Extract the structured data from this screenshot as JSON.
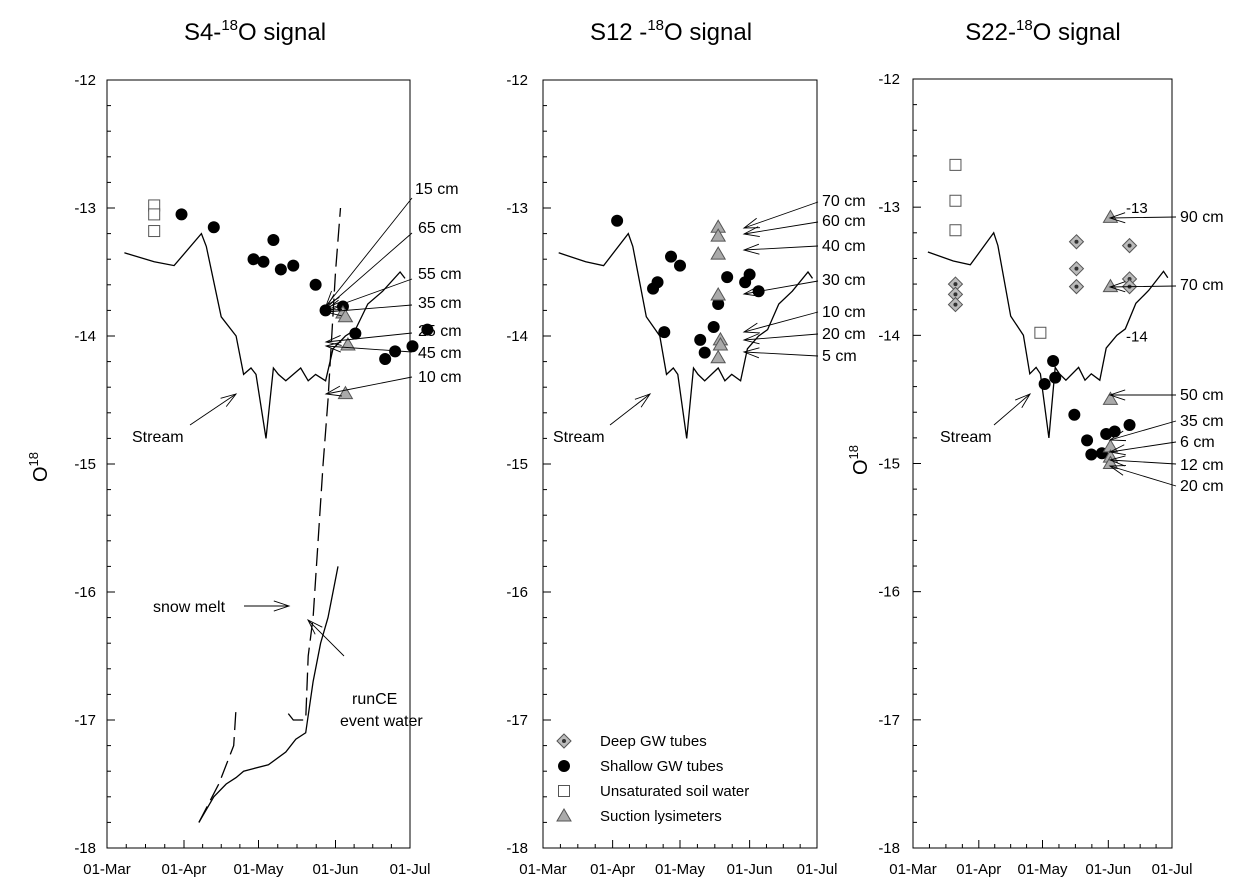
{
  "chart_data": [
    {
      "type": "scatter",
      "title": "S4-18O signal",
      "title_base": "S4-",
      "title_sup": "18",
      "title_rest": "O signal",
      "ylabel_base": "O",
      "ylabel_sup": "18",
      "ylim": [
        -18,
        -12
      ],
      "xlim": [
        "2000-03-01",
        "2000-07-01"
      ],
      "x_tick_labels": [
        "01-Mar",
        "01-Apr",
        "01-May",
        "01-Jun",
        "01-Jul"
      ],
      "x_tick_dates": [
        "2000-03-01",
        "2000-04-01",
        "2000-05-01",
        "2000-06-01",
        "2000-07-01"
      ],
      "y_ticks": [
        -12,
        -13,
        -14,
        -15,
        -16,
        -17,
        -18
      ],
      "y_tick_side": "left",
      "series": [
        {
          "name": "Stream",
          "kind": "line",
          "points": [
            [
              "2000-03-08",
              -13.35
            ],
            [
              "2000-03-20",
              -13.42
            ],
            [
              "2000-03-28",
              -13.45
            ],
            [
              "2000-04-08",
              -13.2
            ],
            [
              "2000-04-10",
              -13.3
            ],
            [
              "2000-04-16",
              -13.85
            ],
            [
              "2000-04-22",
              -14.0
            ],
            [
              "2000-04-25",
              -14.3
            ],
            [
              "2000-04-28",
              -14.25
            ],
            [
              "2000-04-30",
              -14.3
            ],
            [
              "2000-05-04",
              -14.8
            ],
            [
              "2000-05-07",
              -14.25
            ],
            [
              "2000-05-09",
              -14.3
            ],
            [
              "2000-05-12",
              -14.35
            ],
            [
              "2000-05-18",
              -14.25
            ],
            [
              "2000-05-21",
              -14.35
            ],
            [
              "2000-05-24",
              -14.3
            ],
            [
              "2000-05-28",
              -14.35
            ],
            [
              "2000-05-31",
              -14.1
            ],
            [
              "2000-06-05",
              -14.0
            ],
            [
              "2000-06-09",
              -13.95
            ],
            [
              "2000-06-14",
              -13.75
            ],
            [
              "2000-06-20",
              -13.65
            ],
            [
              "2000-06-27",
              -13.5
            ],
            [
              "2000-06-29",
              -13.55
            ]
          ]
        },
        {
          "name": "snow melt",
          "kind": "dashed",
          "points": [
            [
              "2000-04-07",
              -17.8
            ],
            [
              "2000-04-15",
              -17.5
            ],
            [
              "2000-04-21",
              -17.2
            ],
            [
              "2000-04-22",
              -16.9
            ]
          ]
        },
        {
          "name": "snow melt",
          "kind": "dashed",
          "points": [
            [
              "2000-05-13",
              -16.95
            ],
            [
              "2000-05-15",
              -17.0
            ],
            [
              "2000-05-20",
              -17.0
            ],
            [
              "2000-05-21",
              -16.5
            ],
            [
              "2000-05-23",
              -16.2
            ],
            [
              "2000-05-27",
              -15.0
            ],
            [
              "2000-05-29",
              -14.5
            ],
            [
              "2000-06-01",
              -13.5
            ],
            [
              "2000-06-03",
              -13.0
            ]
          ]
        },
        {
          "name": "runCE event water",
          "kind": "line",
          "points": [
            [
              "2000-04-07",
              -17.8
            ],
            [
              "2000-04-13",
              -17.6
            ],
            [
              "2000-04-18",
              -17.5
            ],
            [
              "2000-04-22",
              -17.45
            ],
            [
              "2000-04-25",
              -17.4
            ],
            [
              "2000-04-29",
              -17.38
            ],
            [
              "2000-05-05",
              -17.35
            ],
            [
              "2000-05-12",
              -17.25
            ],
            [
              "2000-05-16",
              -17.15
            ],
            [
              "2000-05-20",
              -17.1
            ],
            [
              "2000-05-23",
              -16.7
            ],
            [
              "2000-05-26",
              -16.4
            ],
            [
              "2000-05-29",
              -16.2
            ],
            [
              "2000-06-01",
              -15.9
            ],
            [
              "2000-06-02",
              -15.8
            ]
          ]
        },
        {
          "name": "Shallow GW tubes",
          "kind": "circle",
          "points": [
            [
              "2000-03-31",
              -13.05
            ],
            [
              "2000-04-13",
              -13.15
            ],
            [
              "2000-04-29",
              -13.4
            ],
            [
              "2000-05-03",
              -13.42
            ],
            [
              "2000-05-07",
              -13.25
            ],
            [
              "2000-05-10",
              -13.48
            ],
            [
              "2000-05-15",
              -13.45
            ],
            [
              "2000-05-24",
              -13.6
            ],
            [
              "2000-05-28",
              -13.8
            ],
            [
              "2000-06-04",
              -13.77
            ],
            [
              "2000-06-09",
              -13.98
            ],
            [
              "2000-06-21",
              -14.18
            ],
            [
              "2000-06-25",
              -14.12
            ],
            [
              "2000-07-02",
              -14.08
            ],
            [
              "2000-07-08",
              -13.95
            ]
          ]
        },
        {
          "name": "Unsaturated soil water",
          "kind": "square",
          "points": [
            [
              "2000-03-20",
              -12.98
            ],
            [
              "2000-03-20",
              -13.05
            ],
            [
              "2000-03-20",
              -13.18
            ]
          ]
        },
        {
          "name": "Suction lysimeters",
          "kind": "triangle",
          "points": [
            [
              "2000-06-04",
              -13.82
            ],
            [
              "2000-06-05",
              -13.85
            ],
            [
              "2000-06-06",
              -14.07
            ],
            [
              "2000-06-05",
              -14.45
            ]
          ]
        }
      ],
      "annotations": [
        "15 cm",
        "65 cm",
        "55 cm",
        "35 cm",
        "25 cm",
        "45 cm",
        "10 cm",
        "Stream",
        "snow melt",
        "runCE",
        "event water"
      ]
    },
    {
      "type": "scatter",
      "title": "S12 -18O signal",
      "title_base": "S12 -",
      "title_sup": "18",
      "title_rest": "O signal",
      "ylim": [
        -18,
        -12
      ],
      "xlim": [
        "2000-03-01",
        "2000-07-01"
      ],
      "x_tick_labels": [
        "01-Mar",
        "01-Apr",
        "01-May",
        "01-Jun",
        "01-Jul"
      ],
      "x_tick_dates": [
        "2000-03-01",
        "2000-04-01",
        "2000-05-01",
        "2000-06-01",
        "2000-07-01"
      ],
      "y_ticks": [
        -12,
        -13,
        -14,
        -15,
        -16,
        -17,
        -18
      ],
      "y_tick_side": "left",
      "series": [
        {
          "name": "Stream",
          "kind": "line",
          "points": [
            [
              "2000-03-08",
              -13.35
            ],
            [
              "2000-03-20",
              -13.42
            ],
            [
              "2000-03-28",
              -13.45
            ],
            [
              "2000-04-08",
              -13.2
            ],
            [
              "2000-04-10",
              -13.3
            ],
            [
              "2000-04-16",
              -13.85
            ],
            [
              "2000-04-22",
              -14.0
            ],
            [
              "2000-04-25",
              -14.3
            ],
            [
              "2000-04-28",
              -14.25
            ],
            [
              "2000-04-30",
              -14.3
            ],
            [
              "2000-05-04",
              -14.8
            ],
            [
              "2000-05-07",
              -14.25
            ],
            [
              "2000-05-09",
              -14.3
            ],
            [
              "2000-05-12",
              -14.35
            ],
            [
              "2000-05-18",
              -14.25
            ],
            [
              "2000-05-21",
              -14.35
            ],
            [
              "2000-05-24",
              -14.3
            ],
            [
              "2000-05-28",
              -14.35
            ],
            [
              "2000-05-31",
              -14.1
            ],
            [
              "2000-06-05",
              -14.0
            ],
            [
              "2000-06-09",
              -13.95
            ],
            [
              "2000-06-14",
              -13.75
            ],
            [
              "2000-06-20",
              -13.65
            ],
            [
              "2000-06-27",
              -13.5
            ],
            [
              "2000-06-29",
              -13.55
            ]
          ]
        },
        {
          "name": "Shallow GW tubes",
          "kind": "circle",
          "points": [
            [
              "2000-04-03",
              -13.1
            ],
            [
              "2000-04-19",
              -13.63
            ],
            [
              "2000-04-21",
              -13.58
            ],
            [
              "2000-04-24",
              -13.97
            ],
            [
              "2000-04-27",
              -13.38
            ],
            [
              "2000-05-01",
              -13.45
            ],
            [
              "2000-05-10",
              -14.03
            ],
            [
              "2000-05-12",
              -14.13
            ],
            [
              "2000-05-16",
              -13.93
            ],
            [
              "2000-05-18",
              -13.75
            ],
            [
              "2000-05-22",
              -13.54
            ],
            [
              "2000-05-30",
              -13.58
            ],
            [
              "2000-06-01",
              -13.52
            ],
            [
              "2000-06-05",
              -13.65
            ]
          ]
        },
        {
          "name": "Suction lysimeters",
          "kind": "triangle",
          "points": [
            [
              "2000-05-18",
              -13.15
            ],
            [
              "2000-05-18",
              -13.22
            ],
            [
              "2000-05-18",
              -13.36
            ],
            [
              "2000-05-18",
              -13.68
            ],
            [
              "2000-05-19",
              -14.03
            ],
            [
              "2000-05-19",
              -14.07
            ],
            [
              "2000-05-18",
              -14.17
            ]
          ]
        }
      ],
      "annotations": [
        "70 cm",
        "60 cm",
        "40 cm",
        "30 cm",
        "10 cm",
        "20 cm",
        "5 cm",
        "Stream"
      ],
      "legend": {
        "position": "bottom-left",
        "entries": [
          {
            "label": "Deep GW tubes",
            "marker": "diamond"
          },
          {
            "label": "Shallow GW tubes",
            "marker": "circle"
          },
          {
            "label": "Unsaturated soil water",
            "marker": "square"
          },
          {
            "label": "Suction lysimeters",
            "marker": "triangle"
          }
        ]
      }
    },
    {
      "type": "scatter",
      "title": "S22-18O signal",
      "title_base": "S22-",
      "title_sup": "18",
      "title_rest": "O signal",
      "ylabel_base": "O",
      "ylabel_sup": "18",
      "ylim": [
        -18,
        -12
      ],
      "xlim": [
        "2000-03-01",
        "2000-07-01"
      ],
      "x_tick_labels": [
        "01-Mar",
        "01-Apr",
        "01-May",
        "01-Jun",
        "01-Jul"
      ],
      "x_tick_dates": [
        "2000-03-01",
        "2000-04-01",
        "2000-05-01",
        "2000-06-01",
        "2000-07-01"
      ],
      "y_ticks": [
        -12,
        -13,
        -14,
        -15,
        -16,
        -17,
        -18
      ],
      "y_tick_side": "left",
      "series": [
        {
          "name": "Stream",
          "kind": "line",
          "points": [
            [
              "2000-03-08",
              -13.35
            ],
            [
              "2000-03-20",
              -13.42
            ],
            [
              "2000-03-28",
              -13.45
            ],
            [
              "2000-04-08",
              -13.2
            ],
            [
              "2000-04-10",
              -13.3
            ],
            [
              "2000-04-16",
              -13.85
            ],
            [
              "2000-04-22",
              -14.0
            ],
            [
              "2000-04-25",
              -14.3
            ],
            [
              "2000-04-28",
              -14.25
            ],
            [
              "2000-04-30",
              -14.3
            ],
            [
              "2000-05-04",
              -14.8
            ],
            [
              "2000-05-07",
              -14.25
            ],
            [
              "2000-05-09",
              -14.3
            ],
            [
              "2000-05-12",
              -14.35
            ],
            [
              "2000-05-18",
              -14.25
            ],
            [
              "2000-05-21",
              -14.35
            ],
            [
              "2000-05-24",
              -14.3
            ],
            [
              "2000-05-28",
              -14.35
            ],
            [
              "2000-05-31",
              -14.1
            ],
            [
              "2000-06-05",
              -14.0
            ],
            [
              "2000-06-09",
              -13.95
            ],
            [
              "2000-06-14",
              -13.75
            ],
            [
              "2000-06-20",
              -13.65
            ],
            [
              "2000-06-27",
              -13.5
            ],
            [
              "2000-06-29",
              -13.55
            ]
          ]
        },
        {
          "name": "Deep GW tubes",
          "kind": "diamond",
          "points": [
            [
              "2000-03-21",
              -13.6
            ],
            [
              "2000-03-21",
              -13.68
            ],
            [
              "2000-03-21",
              -13.76
            ],
            [
              "2000-05-17",
              -13.27
            ],
            [
              "2000-05-17",
              -13.48
            ],
            [
              "2000-05-17",
              -13.62
            ],
            [
              "2000-06-11",
              -13.3
            ],
            [
              "2000-06-11",
              -13.56
            ],
            [
              "2000-06-11",
              -13.62
            ]
          ]
        },
        {
          "name": "Shallow GW tubes",
          "kind": "circle",
          "points": [
            [
              "2000-05-02",
              -14.38
            ],
            [
              "2000-05-06",
              -14.2
            ],
            [
              "2000-05-07",
              -14.33
            ],
            [
              "2000-05-16",
              -14.62
            ],
            [
              "2000-05-22",
              -14.82
            ],
            [
              "2000-05-24",
              -14.93
            ],
            [
              "2000-05-29",
              -14.92
            ],
            [
              "2000-05-31",
              -14.77
            ],
            [
              "2000-06-04",
              -14.75
            ],
            [
              "2000-06-11",
              -14.7
            ]
          ]
        },
        {
          "name": "Unsaturated soil water",
          "kind": "square",
          "points": [
            [
              "2000-03-21",
              -12.67
            ],
            [
              "2000-03-21",
              -12.95
            ],
            [
              "2000-03-21",
              -13.18
            ],
            [
              "2000-04-30",
              -13.98
            ]
          ]
        },
        {
          "name": "Suction lysimeters",
          "kind": "triangle",
          "points": [
            [
              "2000-06-02",
              -13.08
            ],
            [
              "2000-06-02",
              -13.62
            ],
            [
              "2000-06-02",
              -14.5
            ],
            [
              "2000-06-02",
              -14.87
            ],
            [
              "2000-06-02",
              -14.95
            ],
            [
              "2000-06-02",
              -15.0
            ]
          ]
        }
      ],
      "annotations": [
        "90 cm",
        "70 cm",
        "50 cm",
        "35 cm",
        "6 cm",
        "12 cm",
        "20 cm",
        "Stream"
      ],
      "extra_tick_labels": [
        "-13",
        "-14"
      ]
    }
  ]
}
